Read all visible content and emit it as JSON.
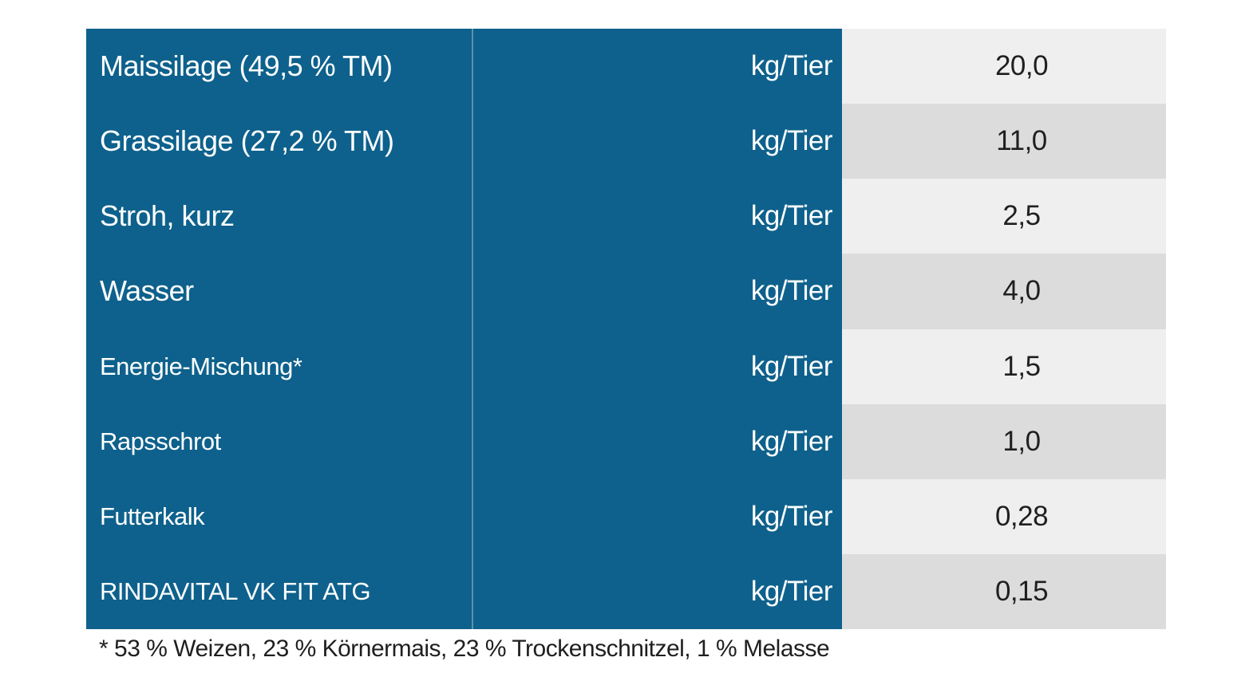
{
  "chart_data": {
    "type": "table",
    "columns": [
      "feed_name",
      "unit",
      "amount"
    ],
    "rows": [
      {
        "name": "Maissilage (49,5 % TM)",
        "unit": "kg/Tier",
        "value": "20,0"
      },
      {
        "name": "Grassilage (27,2 % TM)",
        "unit": "kg/Tier",
        "value": "11,0"
      },
      {
        "name": "Stroh, kurz",
        "unit": "kg/Tier",
        "value": "2,5"
      },
      {
        "name": "Wasser",
        "unit": "kg/Tier",
        "value": "4,0"
      },
      {
        "name": "Energie-Mischung*",
        "unit": "kg/Tier",
        "value": "1,5"
      },
      {
        "name": "Rapsschrot",
        "unit": "kg/Tier",
        "value": "1,0"
      },
      {
        "name": "Futterkalk",
        "unit": "kg/Tier",
        "value": "0,28"
      },
      {
        "name": "RINDAVITAL VK FIT ATG",
        "unit": "kg/Tier",
        "value": "0,15"
      }
    ],
    "footnote": "* 53 % Weizen, 23 % Körnermais, 23 % Trockenschnitzel, 1 % Melasse",
    "layout_hints": {
      "grid": "off",
      "legend": "none",
      "value_column_alternating": true
    }
  },
  "colors": {
    "blue": "#0e618c",
    "row_light": "#efefef",
    "row_dark": "#dcdcdc",
    "text_dark": "#1f1f1f"
  }
}
